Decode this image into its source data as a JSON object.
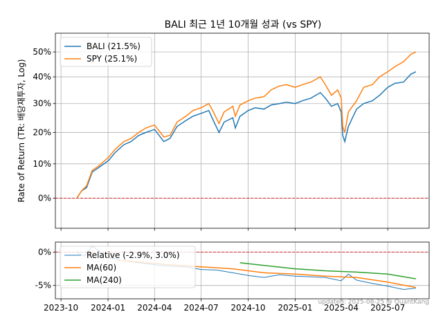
{
  "figure": {
    "title": "BALI 최근 1년 10개월 성과 (vs SPY)",
    "watermark": "updated: 2025-08-25 @ QuantKang"
  },
  "colors": {
    "bali": "#1f77b4",
    "spy": "#ff7f0e",
    "ma240": "#2ca02c",
    "zero_line": "#d62728",
    "grid": "#b0b0b0"
  },
  "chart_data": [
    {
      "type": "line",
      "ylabel": "Rate of Return (TR: 배당재투자, Log)",
      "yscale": "log(1+r)",
      "ylim": [
        -0.08,
        0.58
      ],
      "yticks": [
        {
          "value": 0.0,
          "label": "0%"
        },
        {
          "value": 0.1,
          "label": "10%"
        },
        {
          "value": 0.2,
          "label": "20%"
        },
        {
          "value": 0.3,
          "label": "30%"
        },
        {
          "value": 0.4,
          "label": "40%"
        },
        {
          "value": 0.5,
          "label": "50%"
        }
      ],
      "xlim": [
        "2023-09-20",
        "2025-09-20"
      ],
      "grid": true,
      "legend": "top-left",
      "series": [
        {
          "name": "BALI (21.5%)",
          "color_key": "bali",
          "x": [
            "2023-11-01",
            "2023-11-10",
            "2023-11-20",
            "2023-12-01",
            "2023-12-15",
            "2024-01-02",
            "2024-01-15",
            "2024-02-01",
            "2024-02-15",
            "2024-03-01",
            "2024-03-15",
            "2024-04-01",
            "2024-04-19",
            "2024-05-01",
            "2024-05-15",
            "2024-06-01",
            "2024-06-15",
            "2024-07-01",
            "2024-07-16",
            "2024-07-25",
            "2024-08-05",
            "2024-08-15",
            "2024-09-01",
            "2024-09-06",
            "2024-09-15",
            "2024-10-01",
            "2024-10-15",
            "2024-11-01",
            "2024-11-15",
            "2024-12-01",
            "2024-12-15",
            "2025-01-01",
            "2025-01-15",
            "2025-02-01",
            "2025-02-19",
            "2025-03-01",
            "2025-03-13",
            "2025-03-25",
            "2025-04-01",
            "2025-04-04",
            "2025-04-08",
            "2025-04-15",
            "2025-05-01",
            "2025-05-15",
            "2025-06-01",
            "2025-06-15",
            "2025-07-01",
            "2025-07-15",
            "2025-08-01",
            "2025-08-15",
            "2025-08-25"
          ],
          "y": [
            0.0,
            0.02,
            0.03,
            0.075,
            0.09,
            0.11,
            0.135,
            0.16,
            0.17,
            0.19,
            0.2,
            0.21,
            0.17,
            0.18,
            0.22,
            0.24,
            0.255,
            0.265,
            0.275,
            0.24,
            0.2,
            0.235,
            0.25,
            0.215,
            0.255,
            0.275,
            0.285,
            0.28,
            0.295,
            0.3,
            0.305,
            0.3,
            0.31,
            0.32,
            0.34,
            0.32,
            0.29,
            0.3,
            0.27,
            0.19,
            0.17,
            0.22,
            0.28,
            0.3,
            0.31,
            0.33,
            0.36,
            0.375,
            0.38,
            0.41,
            0.42
          ]
        },
        {
          "name": "SPY (25.1%)",
          "color_key": "spy",
          "x": [
            "2023-11-01",
            "2023-11-10",
            "2023-11-20",
            "2023-12-01",
            "2023-12-15",
            "2024-01-02",
            "2024-01-15",
            "2024-02-01",
            "2024-02-15",
            "2024-03-01",
            "2024-03-15",
            "2024-04-01",
            "2024-04-19",
            "2024-05-01",
            "2024-05-15",
            "2024-06-01",
            "2024-06-15",
            "2024-07-01",
            "2024-07-16",
            "2024-07-25",
            "2024-08-05",
            "2024-08-15",
            "2024-09-01",
            "2024-09-06",
            "2024-09-15",
            "2024-10-01",
            "2024-10-15",
            "2024-11-01",
            "2024-11-15",
            "2024-12-01",
            "2024-12-15",
            "2025-01-01",
            "2025-01-15",
            "2025-02-01",
            "2025-02-19",
            "2025-03-01",
            "2025-03-13",
            "2025-03-25",
            "2025-04-01",
            "2025-04-04",
            "2025-04-08",
            "2025-04-15",
            "2025-05-01",
            "2025-05-15",
            "2025-06-01",
            "2025-06-15",
            "2025-07-01",
            "2025-07-15",
            "2025-08-01",
            "2025-08-15",
            "2025-08-25"
          ],
          "y": [
            0.0,
            0.02,
            0.035,
            0.08,
            0.095,
            0.12,
            0.145,
            0.17,
            0.18,
            0.2,
            0.215,
            0.225,
            0.185,
            0.19,
            0.235,
            0.255,
            0.275,
            0.285,
            0.3,
            0.27,
            0.23,
            0.27,
            0.29,
            0.255,
            0.295,
            0.31,
            0.32,
            0.325,
            0.35,
            0.365,
            0.37,
            0.36,
            0.37,
            0.38,
            0.4,
            0.37,
            0.33,
            0.35,
            0.32,
            0.22,
            0.2,
            0.27,
            0.31,
            0.36,
            0.37,
            0.4,
            0.42,
            0.44,
            0.46,
            0.49,
            0.5
          ]
        }
      ]
    },
    {
      "type": "line",
      "ylim": [
        -0.07,
        0.015
      ],
      "yticks": [
        {
          "value": 0.0,
          "label": "0%"
        },
        {
          "value": -0.05,
          "label": "-5%"
        }
      ],
      "xlim": [
        "2023-09-20",
        "2025-09-20"
      ],
      "xticks": [
        "2023-10",
        "2024-01",
        "2024-04",
        "2024-07",
        "2024-10",
        "2025-01",
        "2025-04",
        "2025-07"
      ],
      "grid": true,
      "legend": "top-left",
      "series": [
        {
          "name": "Relative (-2.9%, 3.0%)",
          "color_key": "bali",
          "x": [
            "2023-11-01",
            "2023-11-15",
            "2023-12-01",
            "2024-01-01",
            "2024-02-01",
            "2024-03-01",
            "2024-04-01",
            "2024-05-01",
            "2024-06-01",
            "2024-07-01",
            "2024-08-01",
            "2024-09-01",
            "2024-10-01",
            "2024-11-01",
            "2024-12-01",
            "2025-01-01",
            "2025-02-01",
            "2025-03-01",
            "2025-04-01",
            "2025-04-15",
            "2025-05-01",
            "2025-06-01",
            "2025-07-01",
            "2025-08-01",
            "2025-08-25"
          ],
          "y": [
            0.0,
            -0.006,
            0.009,
            -0.008,
            -0.013,
            -0.016,
            -0.019,
            -0.021,
            -0.022,
            -0.026,
            -0.027,
            -0.031,
            -0.035,
            -0.038,
            -0.034,
            -0.036,
            -0.037,
            -0.038,
            -0.043,
            -0.033,
            -0.042,
            -0.047,
            -0.051,
            -0.056,
            -0.054
          ]
        },
        {
          "name": "MA(60)",
          "color_key": "spy",
          "x": [
            "2024-01-20",
            "2024-03-01",
            "2024-05-01",
            "2024-07-01",
            "2024-09-01",
            "2024-11-01",
            "2025-01-01",
            "2025-03-01",
            "2025-05-01",
            "2025-07-01",
            "2025-08-25"
          ],
          "y": [
            -0.012,
            -0.015,
            -0.019,
            -0.022,
            -0.025,
            -0.031,
            -0.033,
            -0.036,
            -0.038,
            -0.045,
            -0.053
          ]
        },
        {
          "name": "MA(240)",
          "color_key": "ma240",
          "x": [
            "2024-09-15",
            "2024-11-01",
            "2025-01-01",
            "2025-03-01",
            "2025-05-01",
            "2025-07-01",
            "2025-08-25"
          ],
          "y": [
            -0.016,
            -0.02,
            -0.025,
            -0.028,
            -0.03,
            -0.033,
            -0.04
          ]
        }
      ]
    }
  ]
}
